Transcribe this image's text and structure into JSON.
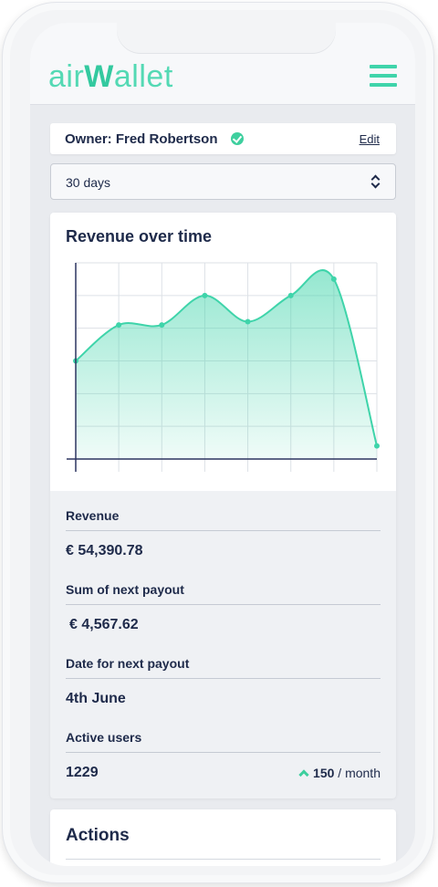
{
  "app": {
    "logo_part1": "air",
    "logo_part2": "W",
    "logo_part3": "allet",
    "brand_color": "#3fd4aa",
    "menu_icon": "hamburger-menu-icon"
  },
  "owner": {
    "label": "Owner: Fred Robertson",
    "verified_icon": "verified-check-icon",
    "edit_label": "Edit"
  },
  "period_select": {
    "value": "30 days",
    "icon": "up-down-chevron-icon"
  },
  "chart": {
    "title": "Revenue over time"
  },
  "chart_data": {
    "type": "area",
    "title": "Revenue over time",
    "xlabel": "",
    "ylabel": "",
    "x": [
      0,
      1,
      2,
      3,
      4,
      5,
      6,
      7
    ],
    "values": [
      3.0,
      4.1,
      4.1,
      5.0,
      4.2,
      5.0,
      5.5,
      0.4
    ],
    "ylim": [
      0,
      6
    ],
    "grid": true,
    "color": "#3fd4aa"
  },
  "stats": {
    "revenue_label": "Revenue",
    "revenue_value": "€ 54,390.78",
    "payout_label": "Sum of next payout",
    "payout_value": "€ 4,567.62",
    "date_label": "Date for next payout",
    "date_value": "4th June",
    "users_label": "Active users",
    "users_value": "1229",
    "users_growth": "150",
    "users_growth_unit": " / month",
    "growth_icon": "chevron-up-icon"
  },
  "actions": {
    "title": "Actions"
  }
}
